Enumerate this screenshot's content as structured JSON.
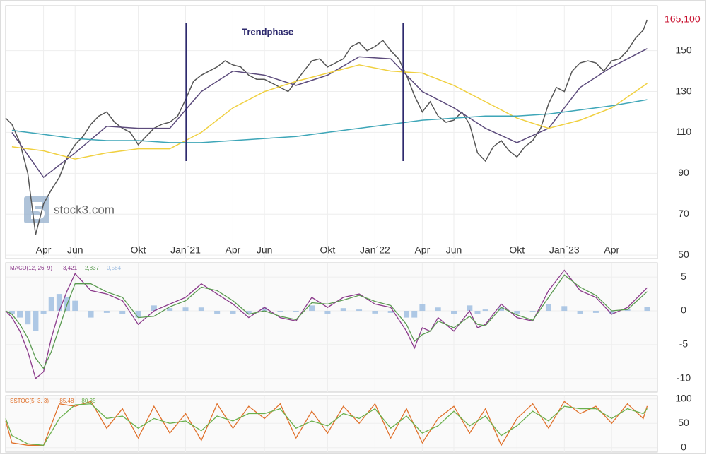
{
  "chart_data": [
    {
      "type": "line",
      "xlim": [
        0.6,
        41.9
      ],
      "xticks": [
        {
          "value": 3,
          "label": "Apr"
        },
        {
          "value": 5,
          "label": "Jun"
        },
        {
          "value": 9,
          "label": "Okt"
        },
        {
          "value": 12,
          "label": "Jan´21"
        },
        {
          "value": 15,
          "label": "Apr"
        },
        {
          "value": 17,
          "label": "Jun"
        },
        {
          "value": 21,
          "label": "Okt"
        },
        {
          "value": 24,
          "label": "Jan´22"
        },
        {
          "value": 27,
          "label": "Apr"
        },
        {
          "value": 29,
          "label": "Jun"
        },
        {
          "value": 33,
          "label": "Okt"
        },
        {
          "value": 36,
          "label": "Jan´23"
        },
        {
          "value": 39,
          "label": "Apr"
        }
      ],
      "ylim": [
        48.3,
        172
      ],
      "yticks": [
        50,
        70,
        90,
        110,
        130,
        150
      ],
      "grid": true,
      "watermark": "stock3.com",
      "annotation": {
        "text": "Trendphase",
        "lines": [
          12.05,
          25.8
        ]
      },
      "x": [
        0.6,
        1,
        1.5,
        2,
        2.5,
        3,
        3.5,
        4,
        4.5,
        5,
        5.5,
        6,
        6.5,
        7,
        7.5,
        8,
        8.5,
        9,
        9.5,
        10,
        10.5,
        11,
        11.5,
        12,
        12.5,
        13,
        13.5,
        14,
        14.5,
        15,
        15.5,
        16,
        16.5,
        17,
        17.5,
        18,
        18.5,
        19,
        19.5,
        20,
        20.5,
        21,
        21.5,
        22,
        22.5,
        23,
        23.5,
        24,
        24.5,
        25,
        25.5,
        26,
        26.5,
        27,
        27.5,
        28,
        28.5,
        29,
        29.5,
        30,
        30.5,
        31,
        31.5,
        32,
        32.5,
        33,
        33.5,
        34,
        34.5,
        35,
        35.5,
        36,
        36.5,
        37,
        37.5,
        38,
        38.5,
        39,
        39.5,
        40,
        40.5,
        41,
        41.25
      ],
      "series": [
        {
          "color": "#555555",
          "label_color": "#c8102e",
          "last_label": "165,100",
          "values": [
            117,
            114,
            105,
            90,
            60,
            75,
            82,
            88,
            98,
            104,
            108,
            114,
            118,
            120,
            115,
            112,
            110,
            104,
            108,
            112,
            114,
            115,
            118,
            126,
            135,
            138,
            140,
            142,
            145,
            143,
            142,
            138,
            136,
            136,
            134,
            132,
            130,
            135,
            140,
            145,
            146,
            142,
            144,
            146,
            152,
            154,
            150,
            152,
            155,
            150,
            146,
            138,
            128,
            120,
            125,
            118,
            115,
            116,
            120,
            114,
            100,
            96,
            103,
            106,
            101,
            98,
            103,
            106,
            112,
            124,
            132,
            130,
            140,
            144,
            145,
            144,
            140,
            145,
            146,
            150,
            156,
            160,
            165.1
          ]
        },
        {
          "color": "#5c4b7c",
          "x": [
            1,
            3,
            5,
            7,
            9,
            11,
            13,
            15,
            17,
            19,
            21,
            23,
            25,
            27,
            29,
            31,
            33,
            35,
            37,
            39,
            41.25
          ],
          "values": [
            110,
            88,
            100,
            113,
            112,
            112,
            130,
            140,
            138,
            133,
            138,
            147,
            146,
            130,
            122,
            112,
            105,
            112,
            132,
            142,
            151
          ]
        },
        {
          "color": "#f0d040",
          "x": [
            1,
            3,
            5,
            7,
            9,
            11,
            13,
            15,
            17,
            19,
            21,
            23,
            25,
            27,
            29,
            31,
            33,
            35,
            37,
            39,
            41.25
          ],
          "values": [
            103,
            101,
            97,
            100,
            102,
            102,
            110,
            122,
            130,
            135,
            139,
            143,
            140,
            139,
            133,
            125,
            117,
            112,
            116,
            122,
            134
          ]
        },
        {
          "color": "#3ea6b8",
          "x": [
            1,
            3,
            5,
            7,
            9,
            11,
            13,
            15,
            17,
            19,
            21,
            23,
            25,
            27,
            29,
            31,
            33,
            35,
            37,
            39,
            41.25
          ],
          "values": [
            111,
            109,
            107,
            106,
            106,
            105,
            105,
            106,
            107,
            108,
            110,
            112,
            114,
            116,
            117,
            118,
            118,
            119,
            121,
            123,
            126
          ]
        }
      ]
    },
    {
      "type": "line",
      "title": "MACD(12, 26, 9)",
      "title_color": "#8b3a8b",
      "ylim": [
        -12,
        7.1
      ],
      "yticks": [
        5,
        0,
        -5,
        -10
      ],
      "grid": true,
      "x": [
        0.6,
        1,
        1.5,
        2,
        2.5,
        3,
        3.5,
        4,
        4.5,
        5,
        6,
        7,
        8,
        9,
        10,
        11,
        12,
        13,
        14,
        15,
        16,
        17,
        18,
        19,
        20,
        21,
        22,
        23,
        24,
        25,
        26,
        26.5,
        27,
        27.5,
        28,
        29,
        30,
        30.5,
        31,
        32,
        33,
        34,
        35,
        36,
        37,
        38,
        39,
        40,
        41.25
      ],
      "series": [
        {
          "type": "bar",
          "color": "#9bbbe0",
          "last_label": "0,584",
          "values": [
            0,
            -0.5,
            -1,
            -2,
            -3,
            -0.5,
            2,
            2.5,
            2,
            1.5,
            -1,
            -0.3,
            -0.5,
            -1,
            0.8,
            0.4,
            0.5,
            0.5,
            -0.5,
            -0.5,
            -0.5,
            0.5,
            -0.2,
            -0.2,
            0.8,
            -0.5,
            0.4,
            0.2,
            -0.4,
            -0.3,
            -1,
            -1,
            1,
            0,
            0.5,
            -0.5,
            0.8,
            -0.5,
            0.2,
            0.5,
            -0.4,
            -0.1,
            1,
            0.7,
            -0.5,
            -0.3,
            -0.5,
            0.3,
            0.584
          ]
        },
        {
          "color": "#8b3a8b",
          "last_label": "3,421",
          "values": [
            0,
            -1,
            -3,
            -6,
            -10,
            -9,
            -4,
            0,
            3,
            5.5,
            3,
            2.5,
            1.5,
            -2,
            0,
            1,
            2,
            4,
            2.5,
            1,
            -1,
            0.5,
            -1,
            -1.5,
            2,
            0.5,
            2,
            2.5,
            1,
            0.5,
            -3,
            -5.5,
            -2.5,
            -3,
            -1,
            -3,
            0,
            -2.5,
            -2,
            1,
            -1,
            -1.5,
            3,
            6,
            3,
            2,
            -0.5,
            0.5,
            3.421
          ]
        },
        {
          "color": "#5a9a50",
          "last_label": "2,837",
          "values": [
            0,
            -0.5,
            -2,
            -4,
            -7,
            -8.5,
            -6,
            -2.5,
            1,
            4,
            4,
            2.8,
            2,
            -1,
            -0.8,
            0.6,
            1.5,
            3.5,
            3,
            1.5,
            -0.5,
            0,
            -0.8,
            -1.3,
            1.2,
            1,
            1.6,
            2.3,
            1.4,
            0.8,
            -2,
            -4.5,
            -3.5,
            -3,
            -1.5,
            -2.5,
            -0.8,
            -2,
            -2.2,
            0.5,
            -0.6,
            -1.4,
            2,
            5.3,
            3.5,
            2.3,
            0,
            0.2,
            2.837
          ]
        }
      ]
    },
    {
      "type": "line",
      "title": "SSTOC(5, 3, 3)",
      "title_color": "#e0702a",
      "ylim": [
        -9,
        107
      ],
      "yticks": [
        100,
        50,
        0
      ],
      "grid": true,
      "x": [
        0.6,
        1,
        2,
        3,
        4,
        5,
        6,
        7,
        8,
        9,
        10,
        11,
        12,
        13,
        14,
        15,
        16,
        17,
        18,
        19,
        20,
        21,
        22,
        23,
        24,
        25,
        26,
        27,
        28,
        29,
        30,
        31,
        32,
        33,
        34,
        35,
        36,
        37,
        38,
        39,
        40,
        41,
        41.25
      ],
      "series": [
        {
          "color": "#e0702a",
          "last_label": "85,48",
          "values": [
            55,
            10,
            5,
            5,
            90,
            85,
            95,
            40,
            80,
            20,
            85,
            30,
            70,
            15,
            90,
            40,
            85,
            60,
            90,
            20,
            75,
            30,
            85,
            50,
            90,
            20,
            80,
            10,
            60,
            85,
            30,
            80,
            5,
            60,
            90,
            40,
            95,
            70,
            85,
            50,
            90,
            60,
            85.48
          ]
        },
        {
          "color": "#6ab04c",
          "last_label": "80,35",
          "values": [
            60,
            25,
            8,
            5,
            60,
            88,
            90,
            60,
            65,
            40,
            60,
            50,
            55,
            35,
            65,
            55,
            70,
            70,
            80,
            40,
            55,
            45,
            70,
            60,
            80,
            40,
            65,
            30,
            45,
            75,
            45,
            65,
            25,
            45,
            75,
            55,
            85,
            80,
            80,
            60,
            80,
            70,
            80.35
          ]
        }
      ]
    }
  ]
}
